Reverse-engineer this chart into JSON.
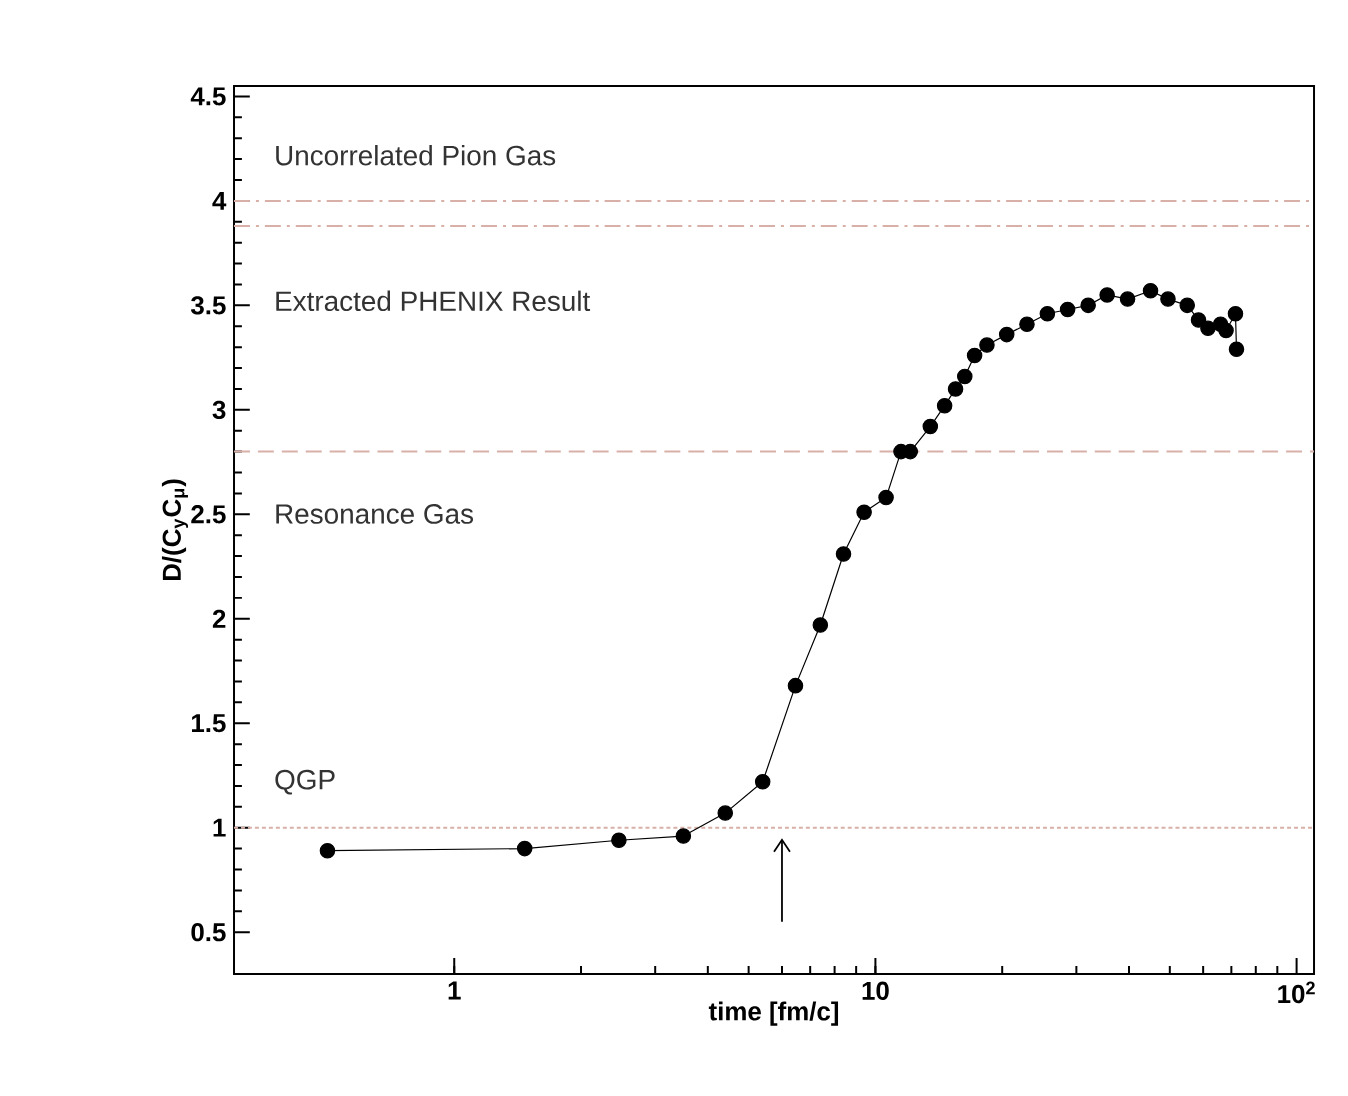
{
  "chart_data": {
    "type": "line",
    "xlabel": "time [fm/c]",
    "ylabel": "D/(C$_{y}$C$_{μ}$)",
    "log": "x",
    "xlim": [
      0.3,
      110
    ],
    "xticks": [
      1,
      10,
      {
        "value": 100,
        "label": "10$^{2}$"
      }
    ],
    "ylim": [
      0.3,
      4.55
    ],
    "yticks": [
      0.5,
      1,
      1.5,
      2,
      2.5,
      3,
      3.5,
      4,
      4.5
    ],
    "marker": "circle",
    "series": [
      {
        "color": "#000000",
        "x": [
          0.5,
          1.47,
          2.46,
          3.5,
          4.4,
          5.4,
          6.46,
          7.4,
          8.4,
          9.4,
          10.6,
          11.5,
          12.1,
          13.5,
          14.6,
          15.5,
          16.3,
          17.2,
          18.4,
          20.5,
          22.9,
          25.6,
          28.6,
          32,
          35.5,
          39.7,
          45,
          49.5,
          55,
          58.5,
          61.6,
          66,
          68,
          71.6,
          72
        ],
        "values": [
          0.89,
          0.9,
          0.94,
          0.96,
          1.07,
          1.22,
          1.68,
          1.97,
          2.31,
          2.51,
          2.58,
          2.8,
          2.8,
          2.92,
          3.02,
          3.1,
          3.16,
          3.26,
          3.31,
          3.36,
          3.41,
          3.46,
          3.48,
          3.5,
          3.55,
          3.53,
          3.57,
          3.53,
          3.5,
          3.43,
          3.39,
          3.41,
          3.38,
          3.46,
          3.29
        ]
      }
    ],
    "ref_lines": [
      {
        "axis": "y",
        "value": 4.0,
        "color": "#d8b0a8",
        "line_style": "dashdot"
      },
      {
        "axis": "y",
        "value": 3.88,
        "color": "#d8b0a8",
        "line_style": "dashdot"
      },
      {
        "axis": "y",
        "value": 2.8,
        "color": "#d8b0a8",
        "line_style": "dashed"
      },
      {
        "axis": "y",
        "value": 1.0,
        "color": "#d8b0a8",
        "line_style": "dotted"
      }
    ],
    "annotations": [
      "Uncorrelated Pion Gas",
      "Extracted PHENIX Result",
      "Resonance Gas",
      "QGP"
    ]
  }
}
